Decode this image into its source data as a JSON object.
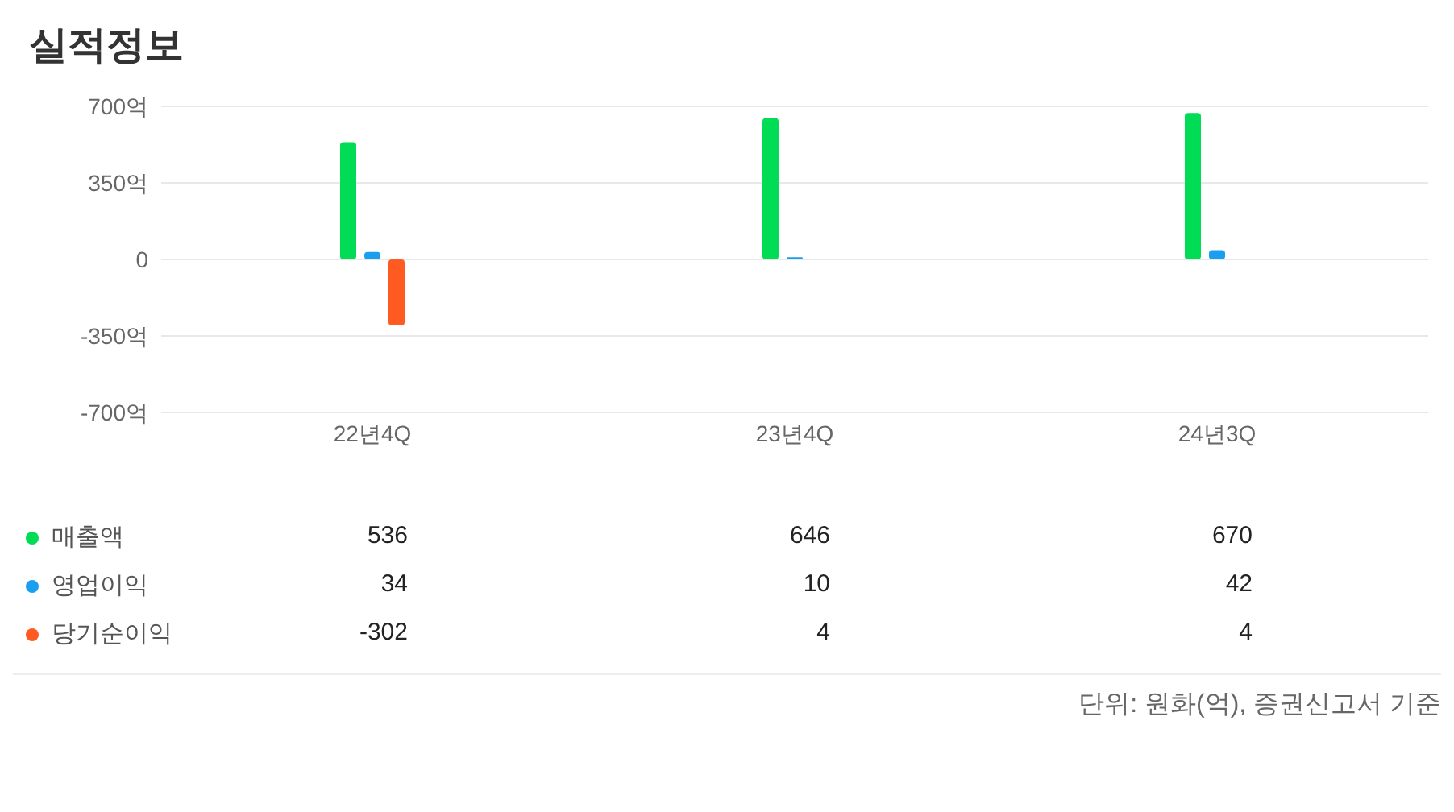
{
  "chart_data": {
    "type": "bar",
    "title": "실적정보",
    "categories": [
      "22년4Q",
      "23년4Q",
      "24년3Q"
    ],
    "series": [
      {
        "name": "매출액",
        "color": "#00dd55",
        "values": [
          536,
          646,
          670
        ]
      },
      {
        "name": "영업이익",
        "color": "#1a9ff0",
        "values": [
          34,
          10,
          42
        ]
      },
      {
        "name": "당기순이익",
        "color": "#ff5a22",
        "values": [
          -302,
          4,
          4
        ]
      }
    ],
    "ylim": [
      -700,
      700
    ],
    "yticks": [
      {
        "value": -700,
        "label": "-700억"
      },
      {
        "value": -350,
        "label": "-350억"
      },
      0,
      {
        "value": 350,
        "label": "350억"
      },
      {
        "value": 700,
        "label": "700억"
      }
    ],
    "grid": "y",
    "legend": "bottom",
    "data_labels": true,
    "annotations": [
      "단위: 원화(억), 증권신고서 기준"
    ]
  }
}
